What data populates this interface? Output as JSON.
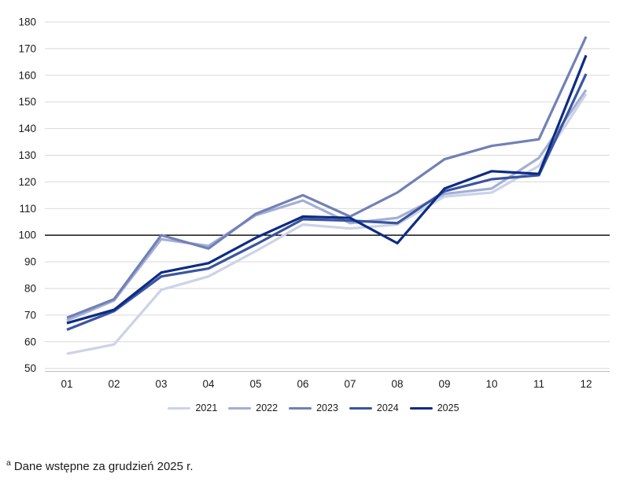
{
  "chart_data": {
    "type": "line",
    "title": "",
    "xlabel": "",
    "ylabel": "",
    "categories": [
      "01",
      "02",
      "03",
      "04",
      "05",
      "06",
      "07",
      "08",
      "09",
      "10",
      "11",
      "12"
    ],
    "series": [
      {
        "name": "2021",
        "color": "#ccd3e8",
        "values": [
          55.5,
          59,
          79.5,
          84.5,
          94,
          104,
          102.5,
          104,
          114.5,
          116,
          126,
          153
        ]
      },
      {
        "name": "2022",
        "color": "#a3afd4",
        "values": [
          68,
          75.5,
          98.5,
          96,
          107.5,
          113,
          104.5,
          106.5,
          115.5,
          117.5,
          129,
          154.5
        ]
      },
      {
        "name": "2023",
        "color": "#7181b5",
        "values": [
          69,
          76,
          100,
          95,
          108,
          115,
          107,
          116,
          128.5,
          133.5,
          136,
          174.5
        ]
      },
      {
        "name": "2024",
        "color": "#3a54a0",
        "values": [
          64.5,
          71.5,
          84.5,
          87.5,
          96.5,
          106,
          105.5,
          104.5,
          116.5,
          121,
          122.5,
          160.5
        ]
      },
      {
        "name": "2025",
        "color": "#0c2c84",
        "values": [
          67,
          72,
          86,
          89.5,
          99,
          107,
          106.5,
          97,
          117.5,
          124,
          123,
          167.5
        ]
      }
    ],
    "ylim": [
      50,
      180
    ],
    "ytick_step": 10,
    "reference_line": 100,
    "grid": true,
    "legend_position": "bottom"
  },
  "colors": {
    "grid": "#d9d9d9",
    "reference": "#000000",
    "axis": "#bfbfbf",
    "text": "#1a1a1a"
  },
  "footnote": {
    "marker": "a",
    "text": "Dane wstępne za grudzień 2025 r."
  }
}
